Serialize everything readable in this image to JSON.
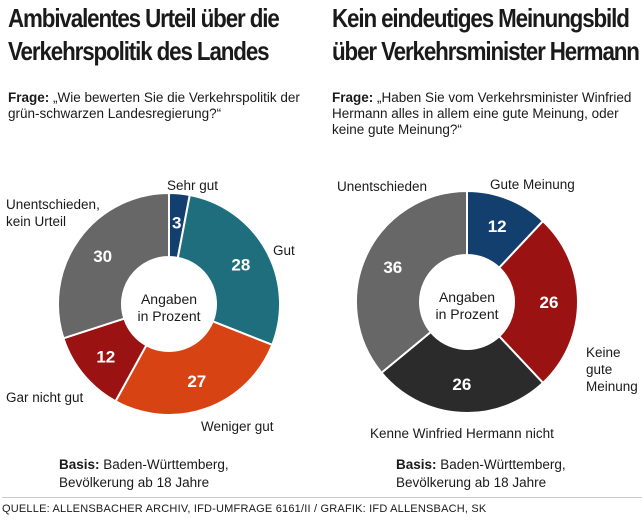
{
  "center_label": [
    "Angaben",
    "in Prozent"
  ],
  "basis_label": "Basis:",
  "basis_lines": [
    "Baden-Württemberg,",
    "Bevölkerung ab 18 Jahre"
  ],
  "source": "QUELLE: ALLENSBACHER ARCHIV, IFD-UMFRAGE 6161/II / GRAFIK: IFD ALLENSBACH, SK",
  "colors": {
    "navy": "#123f6e",
    "teal": "#1e6e7e",
    "orange": "#d84314",
    "darkred": "#9b1212",
    "gray": "#676767",
    "black": "#2b2b2b"
  },
  "chart_data": [
    {
      "type": "pie",
      "title_lines": [
        "Ambivalentes Urteil über die",
        "Verkehrspolitik des Landes"
      ],
      "question_label": "Frage:",
      "question": "„Wie bewerten Sie die Verkehrspolitik der grün-schwarzen Landesregierung?“",
      "unit": "Prozent",
      "slices": [
        {
          "label": "Sehr gut",
          "value": 3,
          "color": "#123f6e"
        },
        {
          "label": "Gut",
          "value": 28,
          "color": "#1e6e7e"
        },
        {
          "label": "Weniger gut",
          "value": 27,
          "color": "#d84314"
        },
        {
          "label": "Gar nicht gut",
          "value": 12,
          "color": "#9b1212"
        },
        {
          "label": "Unentschieden, kein Urteil",
          "value": 30,
          "color": "#676767"
        }
      ]
    },
    {
      "type": "pie",
      "title_lines": [
        "Kein eindeutiges Meinungsbild",
        "über Verkehrsminister Hermann"
      ],
      "question_label": "Frage:",
      "question": "„Haben Sie vom Verkehrsminister Winfried Hermann alles in allem eine gute Meinung, oder keine gute Meinung?“",
      "unit": "Prozent",
      "slices": [
        {
          "label": "Gute Meinung",
          "value": 12,
          "color": "#123f6e"
        },
        {
          "label": "Keine gute Meinung",
          "value": 26,
          "color": "#9b1212"
        },
        {
          "label": "Kenne Winfried Hermann nicht",
          "value": 26,
          "color": "#2b2b2b"
        },
        {
          "label": "Unentschieden",
          "value": 36,
          "color": "#676767"
        }
      ]
    }
  ]
}
